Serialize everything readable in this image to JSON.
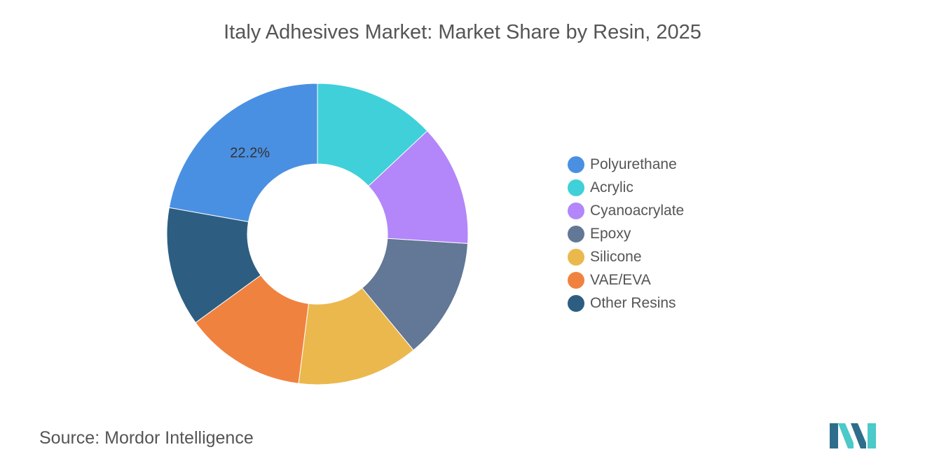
{
  "title": "Italy Adhesives Market: Market Share by Resin, 2025",
  "source": {
    "label": "Source:",
    "value": "Mordor Intelligence"
  },
  "logo": {
    "name": "mordor-intelligence-logo",
    "colors": [
      "#2e6e8c",
      "#4cc9c9"
    ]
  },
  "chart_data": {
    "type": "pie",
    "style": "donut",
    "legend_position": "right",
    "slices": [
      {
        "label": "Polyurethane",
        "value": 22.2,
        "color": "#4a90e2",
        "data_label": "22.2%"
      },
      {
        "label": "Acrylic",
        "value": 13.0,
        "color": "#40d0d9",
        "data_label": ""
      },
      {
        "label": "Cyanoacrylate",
        "value": 13.0,
        "color": "#b386fa",
        "data_label": ""
      },
      {
        "label": "Epoxy",
        "value": 13.0,
        "color": "#637796",
        "data_label": ""
      },
      {
        "label": "Silicone",
        "value": 13.0,
        "color": "#ebb84e",
        "data_label": ""
      },
      {
        "label": "VAE/EVA",
        "value": 13.0,
        "color": "#f08240",
        "data_label": ""
      },
      {
        "label": "Other Resins",
        "value": 12.8,
        "color": "#2d5e82",
        "data_label": ""
      }
    ]
  }
}
